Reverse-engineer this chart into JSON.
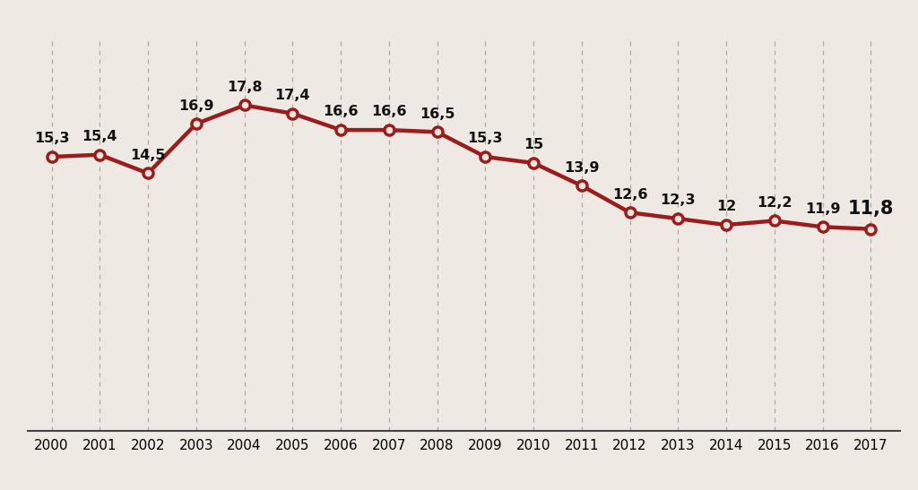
{
  "years": [
    2000,
    2001,
    2002,
    2003,
    2004,
    2005,
    2006,
    2007,
    2008,
    2009,
    2010,
    2011,
    2012,
    2013,
    2014,
    2015,
    2016,
    2017
  ],
  "values": [
    15.3,
    15.4,
    14.5,
    16.9,
    17.8,
    17.4,
    16.6,
    16.6,
    16.5,
    15.3,
    15.0,
    13.9,
    12.6,
    12.3,
    12.0,
    12.2,
    11.9,
    11.8
  ],
  "line_color": "#9B1C1C",
  "marker_face_color": "#EAE5DC",
  "marker_edge_color": "#9B1C1C",
  "background_color": "#EEEAE3",
  "grid_color": "#999999",
  "label_color": "#111111",
  "ylim": [
    2,
    21
  ],
  "label_fontsize": 11.5,
  "last_label_fontsize": 15,
  "tick_fontsize": 11,
  "marker_size": 8,
  "line_width": 3.2,
  "xlim_left": -0.5,
  "xlim_right": 0.6
}
